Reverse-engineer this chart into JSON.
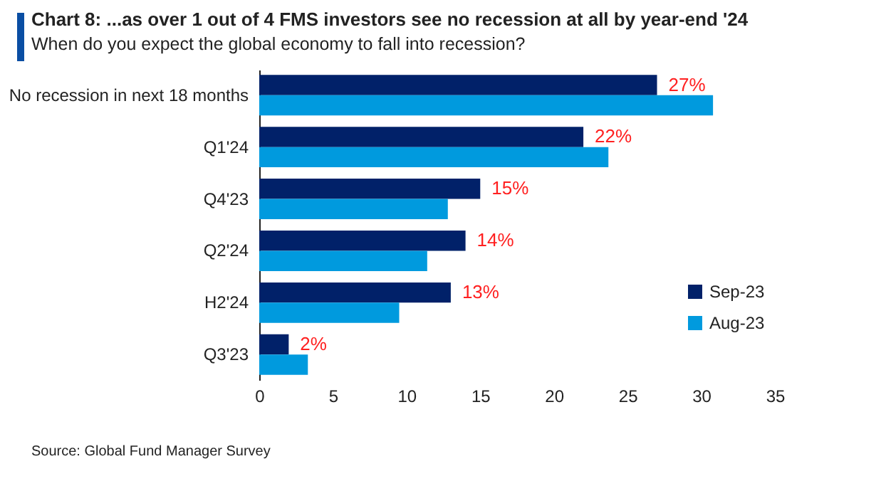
{
  "chart_data": {
    "type": "bar",
    "orientation": "horizontal",
    "title": "Chart 8: ...as over 1 out of 4 FMS investors see no recession at all by year-end '24",
    "subtitle": "When do you expect the global economy to fall into recession?",
    "categories": [
      "No recession in next 18 months",
      "Q1'24",
      "Q4'23",
      "Q2'24",
      "H2'24",
      "Q3'23"
    ],
    "series": [
      {
        "name": "Sep-23",
        "color": "#012169",
        "values": [
          27,
          22,
          15,
          14,
          13,
          2
        ],
        "value_labels": [
          "27%",
          "22%",
          "15%",
          "14%",
          "13%",
          "2%"
        ]
      },
      {
        "name": "Aug-23",
        "color": "#009ade",
        "values": [
          30.8,
          23.7,
          12.8,
          11.4,
          9.5,
          3.3
        ]
      }
    ],
    "xlim": [
      0,
      35
    ],
    "xticks": [
      0,
      5,
      10,
      15,
      20,
      25,
      30,
      35
    ],
    "legend": "bottom right",
    "annotations": [
      "Source: Global Fund Manager Survey"
    ]
  }
}
